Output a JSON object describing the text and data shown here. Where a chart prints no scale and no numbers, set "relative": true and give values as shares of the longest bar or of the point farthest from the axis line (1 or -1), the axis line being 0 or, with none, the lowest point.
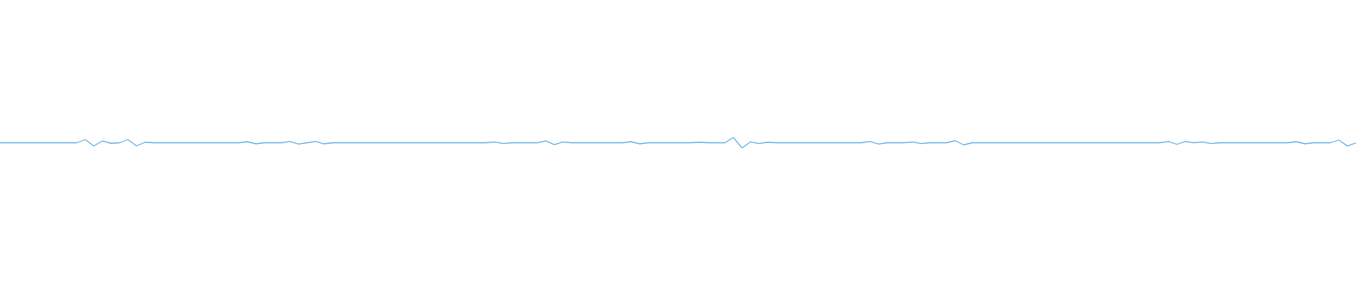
{
  "chart_data": {
    "type": "line",
    "relative": true,
    "categories": [
      null,
      null,
      null,
      null,
      null,
      null,
      null,
      null,
      null,
      null,
      null,
      null,
      null,
      null,
      null,
      null,
      null,
      null,
      null,
      null,
      null,
      null,
      null,
      null,
      null,
      null,
      null,
      null,
      null,
      null,
      null,
      null,
      null,
      null,
      null,
      null,
      null,
      null,
      null,
      null,
      null,
      null,
      null,
      null,
      null,
      null,
      null,
      null,
      null,
      null,
      null,
      null,
      null,
      null,
      null,
      null,
      null,
      null,
      null,
      null,
      null,
      null,
      null,
      null,
      null,
      null,
      null,
      null,
      null,
      null,
      null,
      null,
      null,
      null,
      null,
      null,
      null,
      null,
      null,
      null,
      null,
      null,
      null,
      null,
      null,
      null,
      null,
      null,
      null,
      null,
      null,
      null,
      null,
      null,
      null,
      null,
      null,
      null,
      null,
      null,
      null,
      null,
      null,
      null,
      null,
      null,
      null,
      null,
      null,
      null,
      null,
      null,
      null,
      null,
      null,
      null,
      null,
      null,
      null,
      null,
      null,
      null,
      null,
      null,
      null,
      null,
      null,
      null,
      null,
      null,
      null,
      null,
      null,
      null,
      null,
      null,
      null,
      null,
      null,
      null,
      null,
      null,
      null,
      null,
      null,
      null,
      null,
      null,
      null,
      null,
      null,
      null,
      null,
      null,
      null,
      null,
      null,
      null,
      null,
      null
    ],
    "series": [
      {
        "color": "#5dade2",
        "values": [
          0.5,
          0.5,
          0.5,
          0.5,
          0.5,
          0.5,
          0.5,
          0.5,
          0.5,
          0.5,
          0.8,
          0.2,
          0.67,
          0.45,
          0.5,
          0.8,
          0.2,
          0.55,
          0.5,
          0.5,
          0.5,
          0.5,
          0.5,
          0.5,
          0.5,
          0.5,
          0.5,
          0.5,
          0.5,
          0.6,
          0.4,
          0.5,
          0.5,
          0.5,
          0.63,
          0.37,
          0.5,
          0.63,
          0.4,
          0.5,
          0.5,
          0.5,
          0.5,
          0.5,
          0.5,
          0.5,
          0.5,
          0.5,
          0.5,
          0.5,
          0.5,
          0.5,
          0.5,
          0.5,
          0.5,
          0.5,
          0.5,
          0.5,
          0.57,
          0.43,
          0.5,
          0.5,
          0.5,
          0.5,
          0.67,
          0.33,
          0.58,
          0.5,
          0.5,
          0.5,
          0.5,
          0.5,
          0.5,
          0.5,
          0.6,
          0.4,
          0.5,
          0.5,
          0.5,
          0.5,
          0.5,
          0.5,
          0.55,
          0.5,
          0.5,
          0.5,
          1,
          0,
          0.58,
          0.43,
          0.55,
          0.5,
          0.5,
          0.5,
          0.5,
          0.5,
          0.5,
          0.5,
          0.5,
          0.5,
          0.5,
          0.5,
          0.63,
          0.37,
          0.5,
          0.5,
          0.5,
          0.58,
          0.42,
          0.5,
          0.5,
          0.5,
          0.7,
          0.3,
          0.5,
          0.5,
          0.5,
          0.5,
          0.5,
          0.5,
          0.5,
          0.5,
          0.5,
          0.5,
          0.5,
          0.5,
          0.5,
          0.5,
          0.5,
          0.5,
          0.5,
          0.5,
          0.5,
          0.5,
          0.5,
          0.5,
          0.5,
          0.63,
          0.35,
          0.62,
          0.5,
          0.58,
          0.42,
          0.5,
          0.5,
          0.5,
          0.5,
          0.5,
          0.5,
          0.5,
          0.5,
          0.5,
          0.6,
          0.4,
          0.5,
          0.5,
          0.5,
          0.75,
          0.19,
          0.5
        ]
      }
    ]
  }
}
